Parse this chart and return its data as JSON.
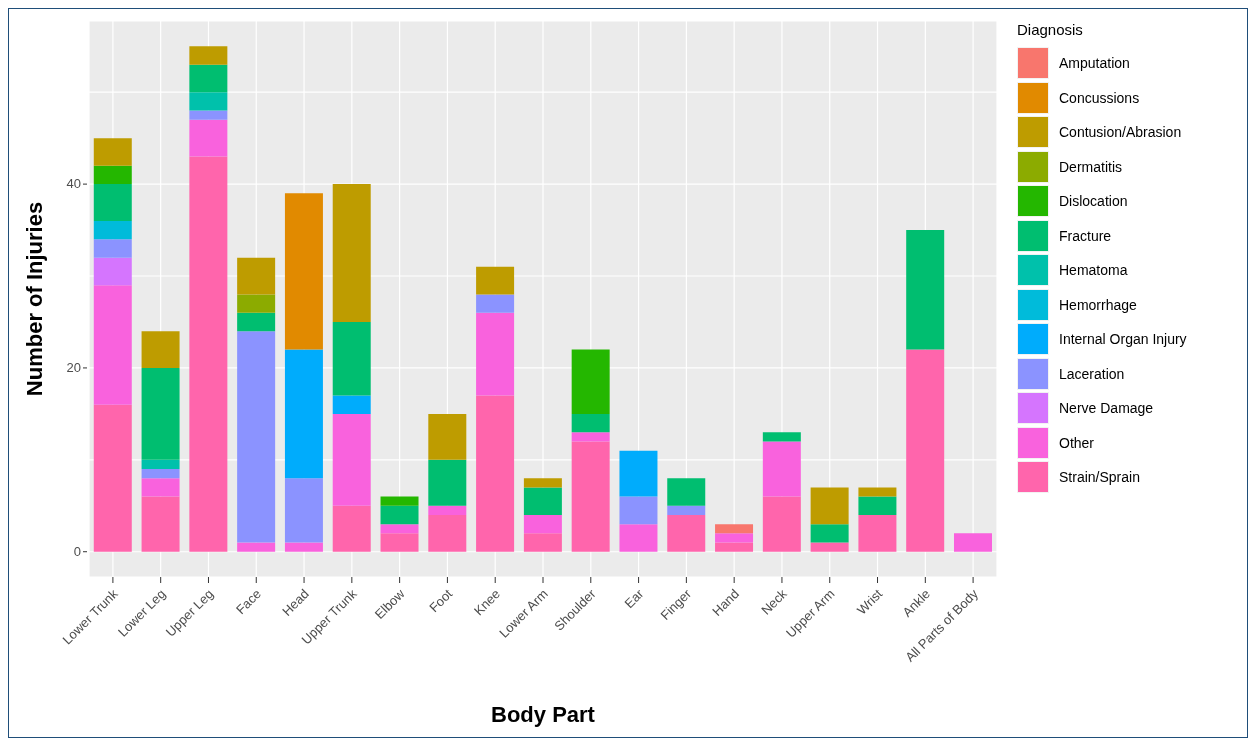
{
  "chart_data": {
    "type": "bar",
    "stacked": true,
    "xlabel": "Body Part",
    "ylabel": "Number of Injuries",
    "legend_title": "Diagnosis",
    "legend": "right",
    "grid": true,
    "categories": [
      "Lower Trunk",
      "Lower Leg",
      "Upper Leg",
      "Face",
      "Head",
      "Upper Trunk",
      "Elbow",
      "Foot",
      "Knee",
      "Lower Arm",
      "Shoulder",
      "Ear",
      "Finger",
      "Hand",
      "Neck",
      "Upper Arm",
      "Wrist",
      "Ankle",
      "All Parts of Body"
    ],
    "ylim": [
      -2.75,
      57.75
    ],
    "yticks": [
      0,
      {
        "value": 10,
        "label": null
      },
      20,
      {
        "value": 30,
        "label": null
      },
      40,
      {
        "value": 50,
        "label": null
      }
    ],
    "series": [
      {
        "name": "Strain/Sprain",
        "color": "#ff65ac",
        "values": [
          16,
          6,
          43,
          null,
          null,
          5,
          2,
          4,
          17,
          2,
          12,
          null,
          4,
          1,
          6,
          1,
          4,
          22,
          null
        ]
      },
      {
        "name": "Other",
        "color": "#f962dd",
        "values": [
          13,
          2,
          4,
          1,
          1,
          10,
          1,
          1,
          9,
          2,
          1,
          3,
          null,
          1,
          6,
          null,
          null,
          null,
          2
        ]
      },
      {
        "name": "Nerve Damage",
        "color": "#d575fe",
        "values": [
          3,
          null,
          null,
          null,
          null,
          null,
          null,
          null,
          null,
          null,
          null,
          null,
          null,
          null,
          null,
          null,
          null,
          null,
          null
        ]
      },
      {
        "name": "Laceration",
        "color": "#8b93ff",
        "values": [
          2,
          1,
          1,
          23,
          7,
          null,
          null,
          null,
          2,
          null,
          null,
          3,
          1,
          null,
          null,
          null,
          null,
          null,
          null
        ]
      },
      {
        "name": "Internal Organ Injury",
        "color": "#00acfc",
        "values": [
          null,
          null,
          null,
          null,
          14,
          2,
          null,
          null,
          null,
          null,
          null,
          5,
          null,
          null,
          null,
          null,
          null,
          null,
          null
        ]
      },
      {
        "name": "Hemorrhage",
        "color": "#00bbda",
        "values": [
          2,
          null,
          null,
          null,
          null,
          null,
          null,
          null,
          null,
          null,
          null,
          null,
          null,
          null,
          null,
          null,
          null,
          null,
          null
        ]
      },
      {
        "name": "Hematoma",
        "color": "#00c1ab",
        "values": [
          null,
          1,
          2,
          null,
          null,
          null,
          null,
          null,
          null,
          null,
          null,
          null,
          null,
          null,
          null,
          null,
          null,
          null,
          null
        ]
      },
      {
        "name": "Fracture",
        "color": "#00be70",
        "values": [
          4,
          10,
          3,
          2,
          null,
          8,
          2,
          5,
          null,
          3,
          2,
          null,
          3,
          null,
          1,
          2,
          2,
          13,
          null
        ]
      },
      {
        "name": "Dislocation",
        "color": "#24b700",
        "values": [
          2,
          null,
          null,
          null,
          null,
          null,
          1,
          null,
          null,
          null,
          7,
          null,
          null,
          null,
          null,
          null,
          null,
          null,
          null
        ]
      },
      {
        "name": "Dermatitis",
        "color": "#8cab00",
        "values": [
          null,
          null,
          null,
          2,
          null,
          null,
          null,
          null,
          null,
          null,
          null,
          null,
          null,
          null,
          null,
          null,
          null,
          null,
          null
        ]
      },
      {
        "name": "Contusion/Abrasion",
        "color": "#be9c00",
        "values": [
          3,
          4,
          2,
          4,
          null,
          15,
          null,
          5,
          3,
          1,
          null,
          null,
          null,
          null,
          null,
          4,
          1,
          null,
          null
        ]
      },
      {
        "name": "Concussions",
        "color": "#e18a00",
        "values": [
          null,
          null,
          null,
          null,
          17,
          null,
          null,
          null,
          null,
          null,
          null,
          null,
          null,
          null,
          null,
          null,
          null,
          null,
          null
        ]
      },
      {
        "name": "Amputation",
        "color": "#f8766d",
        "values": [
          null,
          null,
          null,
          null,
          null,
          null,
          null,
          null,
          null,
          null,
          null,
          null,
          null,
          1,
          null,
          null,
          null,
          null,
          null
        ]
      }
    ]
  }
}
